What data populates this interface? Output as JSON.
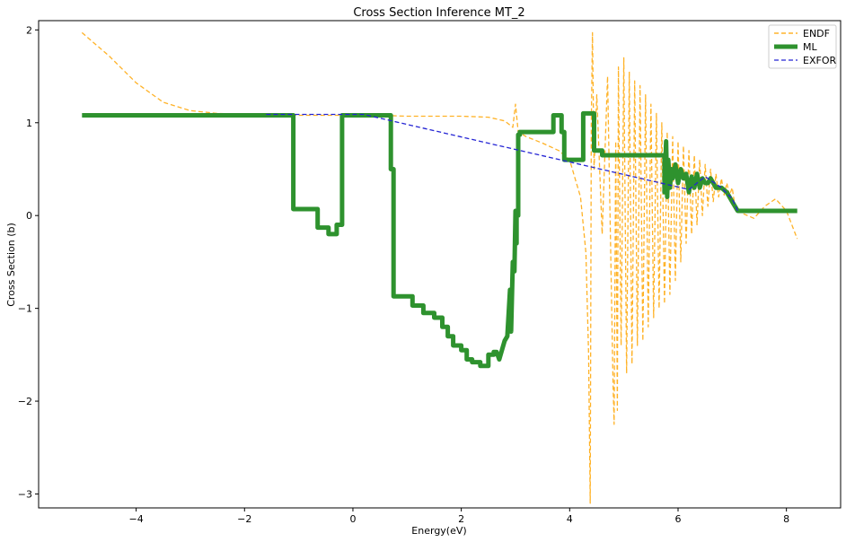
{
  "chart_data": {
    "type": "line",
    "title": "Cross Section Inference MT_2",
    "xlabel": "Energy(eV)",
    "ylabel": "Cross Section (b)",
    "xlim": [
      -5.8,
      9.0
    ],
    "ylim": [
      -3.15,
      2.1
    ],
    "xticks": [
      -4,
      -2,
      0,
      2,
      4,
      6,
      8
    ],
    "xtick_labels": [
      "−4",
      "−2",
      "0",
      "2",
      "4",
      "6",
      "8"
    ],
    "yticks": [
      -3,
      -2,
      -1,
      0,
      1,
      2
    ],
    "ytick_labels": [
      "−3",
      "−2",
      "−1",
      "0",
      "1",
      "2"
    ],
    "grid": false,
    "legend_position": "top-right",
    "legend": [
      "ENDF",
      "ML",
      "EXFOR"
    ],
    "series": [
      {
        "name": "ENDF",
        "color": "#FFA500",
        "style": "dashed",
        "x": [
          -5.0,
          -4.5,
          -4.0,
          -3.5,
          -3.0,
          -2.5,
          -2.0,
          -1.5,
          -1.0,
          -0.5,
          0.0,
          0.5,
          1.0,
          1.5,
          2.0,
          2.5,
          2.8,
          2.95,
          3.0,
          3.05,
          3.2,
          3.5,
          3.8,
          4.0,
          4.1,
          4.2,
          4.3,
          4.35,
          4.38,
          4.4,
          4.42,
          4.45,
          4.5,
          4.6,
          4.7,
          4.8,
          4.82,
          4.85,
          4.88,
          4.9,
          4.95,
          5.0,
          5.05,
          5.1,
          5.15,
          5.2,
          5.25,
          5.3,
          5.35,
          5.4,
          5.45,
          5.5,
          5.55,
          5.6,
          5.65,
          5.7,
          5.75,
          5.8,
          5.85,
          5.9,
          5.95,
          6.0,
          6.05,
          6.1,
          6.15,
          6.2,
          6.25,
          6.3,
          6.35,
          6.4,
          6.45,
          6.5,
          6.55,
          6.6,
          6.65,
          6.7,
          6.75,
          6.8,
          6.85,
          6.9,
          6.95,
          7.0,
          7.05,
          7.1,
          7.2,
          7.4,
          7.6,
          7.8,
          8.0,
          8.2
        ],
        "y": [
          1.97,
          1.72,
          1.43,
          1.22,
          1.13,
          1.1,
          1.09,
          1.09,
          1.08,
          1.08,
          1.08,
          1.08,
          1.07,
          1.07,
          1.07,
          1.06,
          1.02,
          0.95,
          1.2,
          0.9,
          0.85,
          0.78,
          0.7,
          0.6,
          0.4,
          0.2,
          -0.4,
          -1.5,
          -3.1,
          1.0,
          1.97,
          0.5,
          1.3,
          -0.2,
          1.5,
          -1.8,
          -2.25,
          0.8,
          -2.1,
          1.6,
          -1.4,
          1.7,
          -1.7,
          1.55,
          -1.6,
          1.45,
          -1.4,
          1.4,
          -1.35,
          1.3,
          -1.2,
          1.2,
          -1.1,
          1.1,
          -1.0,
          1.0,
          -0.95,
          0.9,
          -0.85,
          0.85,
          -0.7,
          0.8,
          -0.5,
          0.75,
          -0.3,
          0.7,
          -0.2,
          0.65,
          -0.1,
          0.6,
          0.0,
          0.55,
          0.1,
          0.5,
          0.15,
          0.45,
          0.2,
          0.4,
          0.22,
          0.35,
          0.22,
          0.3,
          0.1,
          0.05,
          0.02,
          -0.03,
          0.1,
          0.18,
          0.05,
          -0.25
        ]
      },
      {
        "name": "ML",
        "color": "#2e922e",
        "style": "solid",
        "x": [
          -5.0,
          -1.1,
          -1.1,
          -0.65,
          -0.65,
          -0.45,
          -0.45,
          -0.3,
          -0.3,
          -0.2,
          -0.2,
          0.7,
          0.7,
          0.75,
          0.75,
          1.1,
          1.1,
          1.3,
          1.3,
          1.5,
          1.5,
          1.65,
          1.65,
          1.75,
          1.75,
          1.85,
          1.85,
          2.0,
          2.0,
          2.1,
          2.1,
          2.2,
          2.2,
          2.35,
          2.35,
          2.5,
          2.5,
          2.6,
          2.6,
          2.65,
          2.7,
          2.8,
          2.85,
          2.9,
          2.92,
          2.95,
          2.98,
          3.0,
          3.0,
          3.02,
          3.02,
          3.05,
          3.05,
          3.08,
          3.08,
          3.1,
          3.1,
          3.7,
          3.7,
          3.85,
          3.85,
          3.9,
          3.9,
          4.25,
          4.25,
          4.45,
          4.45,
          4.6,
          4.6,
          4.9,
          4.9,
          5.75,
          5.75,
          5.78,
          5.8,
          5.82,
          5.85,
          5.88,
          5.9,
          5.95,
          6.0,
          6.05,
          6.1,
          6.15,
          6.2,
          6.25,
          6.3,
          6.35,
          6.4,
          6.45,
          6.5,
          6.55,
          6.6,
          6.7,
          6.8,
          6.9,
          7.0,
          7.1,
          7.2,
          8.2
        ],
        "y": [
          1.08,
          1.08,
          0.07,
          0.07,
          -0.13,
          -0.13,
          -0.2,
          -0.2,
          -0.1,
          -0.1,
          1.08,
          1.08,
          0.5,
          0.5,
          -0.87,
          -0.87,
          -0.97,
          -0.97,
          -1.05,
          -1.05,
          -1.1,
          -1.1,
          -1.2,
          -1.2,
          -1.3,
          -1.3,
          -1.4,
          -1.4,
          -1.45,
          -1.45,
          -1.55,
          -1.55,
          -1.58,
          -1.58,
          -1.62,
          -1.62,
          -1.5,
          -1.5,
          -1.47,
          -1.47,
          -1.55,
          -1.35,
          -1.3,
          -0.8,
          -1.25,
          -0.5,
          -0.6,
          0.05,
          -0.3,
          -0.3,
          0.0,
          0.0,
          0.87,
          0.87,
          0.9,
          0.9,
          0.9,
          0.9,
          1.08,
          1.08,
          0.9,
          0.9,
          0.6,
          0.6,
          1.1,
          1.1,
          0.7,
          0.7,
          0.65,
          0.65,
          0.65,
          0.65,
          0.25,
          0.8,
          0.2,
          0.6,
          0.3,
          0.5,
          0.4,
          0.55,
          0.35,
          0.5,
          0.4,
          0.45,
          0.25,
          0.42,
          0.3,
          0.45,
          0.3,
          0.4,
          0.35,
          0.35,
          0.4,
          0.3,
          0.3,
          0.25,
          0.15,
          0.05,
          0.05,
          0.05
        ]
      },
      {
        "name": "EXFOR",
        "color": "#2424d4",
        "style": "dashed",
        "x": [
          -1.6,
          0.2,
          6.2,
          6.5,
          6.6,
          6.8,
          7.0,
          7.1
        ],
        "y": [
          1.09,
          1.09,
          0.28,
          0.42,
          0.38,
          0.3,
          0.18,
          0.05
        ]
      }
    ]
  }
}
